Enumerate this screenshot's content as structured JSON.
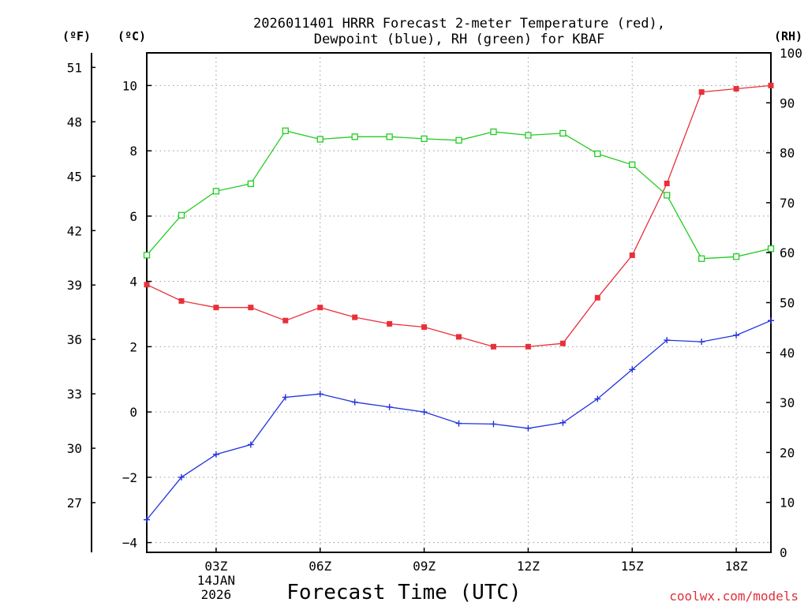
{
  "chart_data": {
    "type": "line",
    "title": [
      "2026011401 HRRR Forecast 2-meter Temperature (red),",
      "Dewpoint (blue), RH (green) for KBAF"
    ],
    "xlabel": "Forecast Time (UTC)",
    "units": {
      "fahrenheit": "(ºF)",
      "celsius": "(ºC)",
      "rh": "(RH)"
    },
    "x_hours": [
      1,
      2,
      3,
      4,
      5,
      6,
      7,
      8,
      9,
      10,
      11,
      12,
      13,
      14,
      15,
      16,
      17,
      18,
      19
    ],
    "xlim": [
      1,
      19
    ],
    "x_ticks": [
      {
        "hour": 3,
        "label": "03Z",
        "sub": [
          "14JAN",
          "2026"
        ]
      },
      {
        "hour": 6,
        "label": "06Z"
      },
      {
        "hour": 9,
        "label": "09Z"
      },
      {
        "hour": 12,
        "label": "12Z"
      },
      {
        "hour": 15,
        "label": "15Z"
      },
      {
        "hour": 18,
        "label": "18Z"
      }
    ],
    "celsius_axis": {
      "ylim": [
        -4.3,
        11.0
      ],
      "ticks": [
        -4,
        -2,
        0,
        2,
        4,
        6,
        8,
        10
      ],
      "tick_labels": [
        "−4",
        "−2",
        "0",
        "2",
        "4",
        "6",
        "8",
        "10"
      ]
    },
    "fahrenheit_axis": {
      "ticks": [
        27,
        30,
        33,
        36,
        39,
        42,
        45,
        48,
        51
      ],
      "tick_labels": [
        "27",
        "30",
        "33",
        "36",
        "39",
        "42",
        "45",
        "48",
        "51"
      ]
    },
    "rh_axis": {
      "ylim": [
        0,
        100
      ],
      "ticks": [
        0,
        10,
        20,
        30,
        40,
        50,
        60,
        70,
        80,
        90,
        100
      ],
      "tick_labels": [
        "0",
        "10",
        "20",
        "30",
        "40",
        "50",
        "60",
        "70",
        "80",
        "90",
        "100"
      ]
    },
    "grid": true,
    "series": [
      {
        "name": "2-meter Temperature",
        "axis": "celsius",
        "color": "#e8303a",
        "marker": "filled-square",
        "values": [
          3.9,
          3.4,
          3.2,
          3.2,
          2.8,
          3.2,
          2.9,
          2.7,
          2.6,
          2.3,
          2.0,
          2.0,
          2.1,
          3.5,
          4.8,
          7.0,
          9.8,
          9.9,
          10.0
        ]
      },
      {
        "name": "Dewpoint",
        "axis": "celsius",
        "color": "#2233dd",
        "marker": "plus",
        "values": [
          -3.3,
          -2.0,
          -1.3,
          -1.0,
          0.45,
          0.55,
          0.3,
          0.15,
          0.0,
          -0.35,
          -0.37,
          -0.5,
          -0.33,
          0.4,
          1.3,
          2.2,
          2.15,
          2.35,
          2.8
        ]
      },
      {
        "name": "RH",
        "axis": "rh",
        "color": "#22cc22",
        "marker": "open-square",
        "values": [
          59.5,
          67.5,
          72.3,
          73.8,
          84.4,
          82.7,
          83.2,
          83.2,
          82.8,
          82.5,
          84.2,
          83.5,
          83.9,
          79.8,
          77.6,
          71.5,
          58.8,
          59.2,
          60.8
        ]
      }
    ],
    "credit": "coolwx.com/models"
  }
}
